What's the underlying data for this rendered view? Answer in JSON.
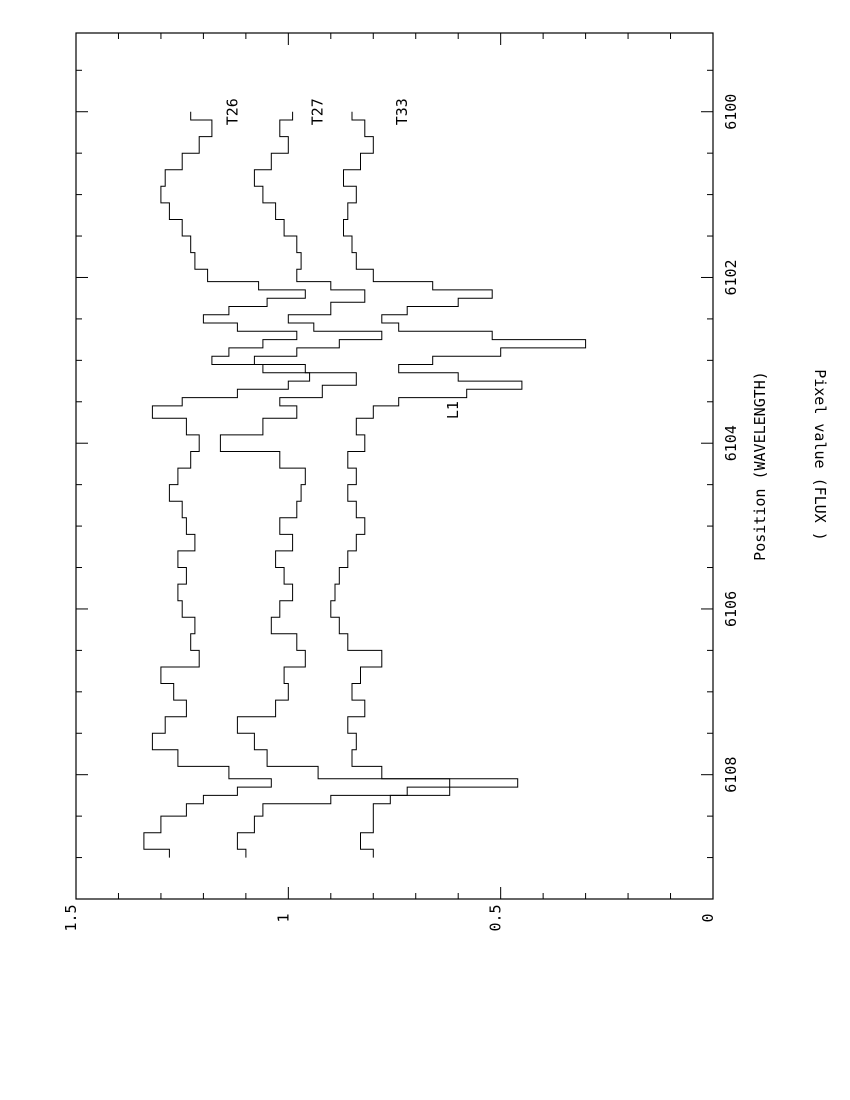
{
  "chart_data": {
    "type": "line",
    "orientation": "rotated-90-ccw",
    "xlabel": "Position (WAVELENGTH)",
    "ylabel": "Pixel value (FLUX )",
    "xlim": [
      6099.05,
      6109.5
    ],
    "ylim": [
      0,
      1.5
    ],
    "x_ticks": [
      6100,
      6102,
      6104,
      6106,
      6108
    ],
    "x_tick_labels": [
      "6100",
      "6102",
      "6104",
      "6106",
      "6108"
    ],
    "y_ticks": [
      0,
      0.5,
      1,
      1.5
    ],
    "y_tick_labels": [
      "0",
      "0.5",
      "1",
      "1.5"
    ],
    "grid": false,
    "legend": "none",
    "annotations": [
      {
        "text": "T26",
        "x": 6100,
        "y": 1.12
      },
      {
        "text": "T27",
        "x": 6100,
        "y": 0.92
      },
      {
        "text": "T33",
        "x": 6100,
        "y": 0.72
      },
      {
        "text": "L1",
        "x": 6103.6,
        "y": 0.6
      }
    ],
    "series": [
      {
        "points": [
          [
            6100.0,
            1.23
          ],
          [
            6100.2,
            1.18
          ],
          [
            6100.4,
            1.21
          ],
          [
            6100.6,
            1.25
          ],
          [
            6100.8,
            1.29
          ],
          [
            6101.0,
            1.3
          ],
          [
            6101.2,
            1.28
          ],
          [
            6101.4,
            1.25
          ],
          [
            6101.6,
            1.23
          ],
          [
            6101.8,
            1.22
          ],
          [
            6102.0,
            1.19
          ],
          [
            6102.1,
            1.07
          ],
          [
            6102.2,
            0.96
          ],
          [
            6102.3,
            1.05
          ],
          [
            6102.4,
            1.14
          ],
          [
            6102.5,
            1.2
          ],
          [
            6102.6,
            1.12
          ],
          [
            6102.7,
            0.98
          ],
          [
            6102.8,
            1.06
          ],
          [
            6102.9,
            1.14
          ],
          [
            6103.0,
            1.18
          ],
          [
            6103.1,
            1.06
          ],
          [
            6103.2,
            0.95
          ],
          [
            6103.3,
            1.0
          ],
          [
            6103.4,
            1.12
          ],
          [
            6103.5,
            1.25
          ],
          [
            6103.6,
            1.32
          ],
          [
            6103.8,
            1.24
          ],
          [
            6104.0,
            1.21
          ],
          [
            6104.2,
            1.23
          ],
          [
            6104.4,
            1.26
          ],
          [
            6104.6,
            1.28
          ],
          [
            6104.8,
            1.25
          ],
          [
            6105.0,
            1.24
          ],
          [
            6105.2,
            1.22
          ],
          [
            6105.4,
            1.26
          ],
          [
            6105.6,
            1.24
          ],
          [
            6105.8,
            1.26
          ],
          [
            6106.0,
            1.25
          ],
          [
            6106.2,
            1.22
          ],
          [
            6106.4,
            1.23
          ],
          [
            6106.6,
            1.21
          ],
          [
            6106.8,
            1.3
          ],
          [
            6107.0,
            1.27
          ],
          [
            6107.2,
            1.24
          ],
          [
            6107.4,
            1.29
          ],
          [
            6107.6,
            1.32
          ],
          [
            6107.8,
            1.26
          ],
          [
            6108.0,
            1.14
          ],
          [
            6108.1,
            1.04
          ],
          [
            6108.2,
            1.12
          ],
          [
            6108.3,
            1.2
          ],
          [
            6108.4,
            1.24
          ],
          [
            6108.6,
            1.3
          ],
          [
            6108.8,
            1.34
          ],
          [
            6109.0,
            1.28
          ]
        ]
      },
      {
        "points": [
          [
            6100.0,
            0.99
          ],
          [
            6100.2,
            1.02
          ],
          [
            6100.4,
            1.0
          ],
          [
            6100.6,
            1.04
          ],
          [
            6100.8,
            1.08
          ],
          [
            6101.0,
            1.06
          ],
          [
            6101.2,
            1.03
          ],
          [
            6101.4,
            1.01
          ],
          [
            6101.6,
            0.98
          ],
          [
            6101.8,
            0.97
          ],
          [
            6102.0,
            0.98
          ],
          [
            6102.1,
            0.9
          ],
          [
            6102.2,
            0.82
          ],
          [
            6102.4,
            0.9
          ],
          [
            6102.5,
            1.0
          ],
          [
            6102.6,
            0.94
          ],
          [
            6102.7,
            0.78
          ],
          [
            6102.8,
            0.88
          ],
          [
            6102.9,
            0.98
          ],
          [
            6103.0,
            1.08
          ],
          [
            6103.1,
            0.96
          ],
          [
            6103.2,
            0.84
          ],
          [
            6103.4,
            0.92
          ],
          [
            6103.5,
            1.02
          ],
          [
            6103.6,
            0.98
          ],
          [
            6103.8,
            1.06
          ],
          [
            6104.0,
            1.16
          ],
          [
            6104.2,
            1.02
          ],
          [
            6104.4,
            0.96
          ],
          [
            6104.6,
            0.97
          ],
          [
            6104.8,
            0.98
          ],
          [
            6105.0,
            1.02
          ],
          [
            6105.2,
            0.99
          ],
          [
            6105.4,
            1.03
          ],
          [
            6105.6,
            1.01
          ],
          [
            6105.8,
            0.99
          ],
          [
            6106.0,
            1.02
          ],
          [
            6106.2,
            1.04
          ],
          [
            6106.4,
            0.98
          ],
          [
            6106.6,
            0.96
          ],
          [
            6106.8,
            1.01
          ],
          [
            6107.0,
            1.0
          ],
          [
            6107.2,
            1.03
          ],
          [
            6107.4,
            1.12
          ],
          [
            6107.6,
            1.08
          ],
          [
            6107.8,
            1.05
          ],
          [
            6108.0,
            0.93
          ],
          [
            6108.1,
            0.62
          ],
          [
            6108.2,
            0.72
          ],
          [
            6108.3,
            0.9
          ],
          [
            6108.4,
            1.06
          ],
          [
            6108.6,
            1.08
          ],
          [
            6108.8,
            1.12
          ],
          [
            6109.0,
            1.1
          ]
        ]
      },
      {
        "points": [
          [
            6100.0,
            0.85
          ],
          [
            6100.2,
            0.82
          ],
          [
            6100.4,
            0.8
          ],
          [
            6100.6,
            0.83
          ],
          [
            6100.8,
            0.87
          ],
          [
            6101.0,
            0.84
          ],
          [
            6101.2,
            0.86
          ],
          [
            6101.4,
            0.87
          ],
          [
            6101.6,
            0.85
          ],
          [
            6101.8,
            0.84
          ],
          [
            6102.0,
            0.8
          ],
          [
            6102.1,
            0.66
          ],
          [
            6102.2,
            0.52
          ],
          [
            6102.3,
            0.6
          ],
          [
            6102.4,
            0.72
          ],
          [
            6102.5,
            0.78
          ],
          [
            6102.6,
            0.74
          ],
          [
            6102.7,
            0.52
          ],
          [
            6102.8,
            0.3
          ],
          [
            6102.9,
            0.5
          ],
          [
            6103.0,
            0.66
          ],
          [
            6103.1,
            0.74
          ],
          [
            6103.2,
            0.6
          ],
          [
            6103.3,
            0.45
          ],
          [
            6103.4,
            0.58
          ],
          [
            6103.5,
            0.74
          ],
          [
            6103.6,
            0.8
          ],
          [
            6103.8,
            0.84
          ],
          [
            6104.0,
            0.82
          ],
          [
            6104.2,
            0.86
          ],
          [
            6104.4,
            0.84
          ],
          [
            6104.6,
            0.86
          ],
          [
            6104.8,
            0.84
          ],
          [
            6105.0,
            0.82
          ],
          [
            6105.2,
            0.84
          ],
          [
            6105.4,
            0.86
          ],
          [
            6105.6,
            0.88
          ],
          [
            6105.8,
            0.89
          ],
          [
            6106.0,
            0.9
          ],
          [
            6106.2,
            0.88
          ],
          [
            6106.4,
            0.86
          ],
          [
            6106.6,
            0.78
          ],
          [
            6106.8,
            0.83
          ],
          [
            6107.0,
            0.85
          ],
          [
            6107.2,
            0.82
          ],
          [
            6107.4,
            0.86
          ],
          [
            6107.6,
            0.84
          ],
          [
            6107.8,
            0.85
          ],
          [
            6108.0,
            0.78
          ],
          [
            6108.1,
            0.46
          ],
          [
            6108.2,
            0.62
          ],
          [
            6108.3,
            0.76
          ],
          [
            6108.4,
            0.8
          ],
          [
            6108.6,
            0.8
          ],
          [
            6108.8,
            0.83
          ],
          [
            6109.0,
            0.8
          ]
        ]
      }
    ]
  }
}
